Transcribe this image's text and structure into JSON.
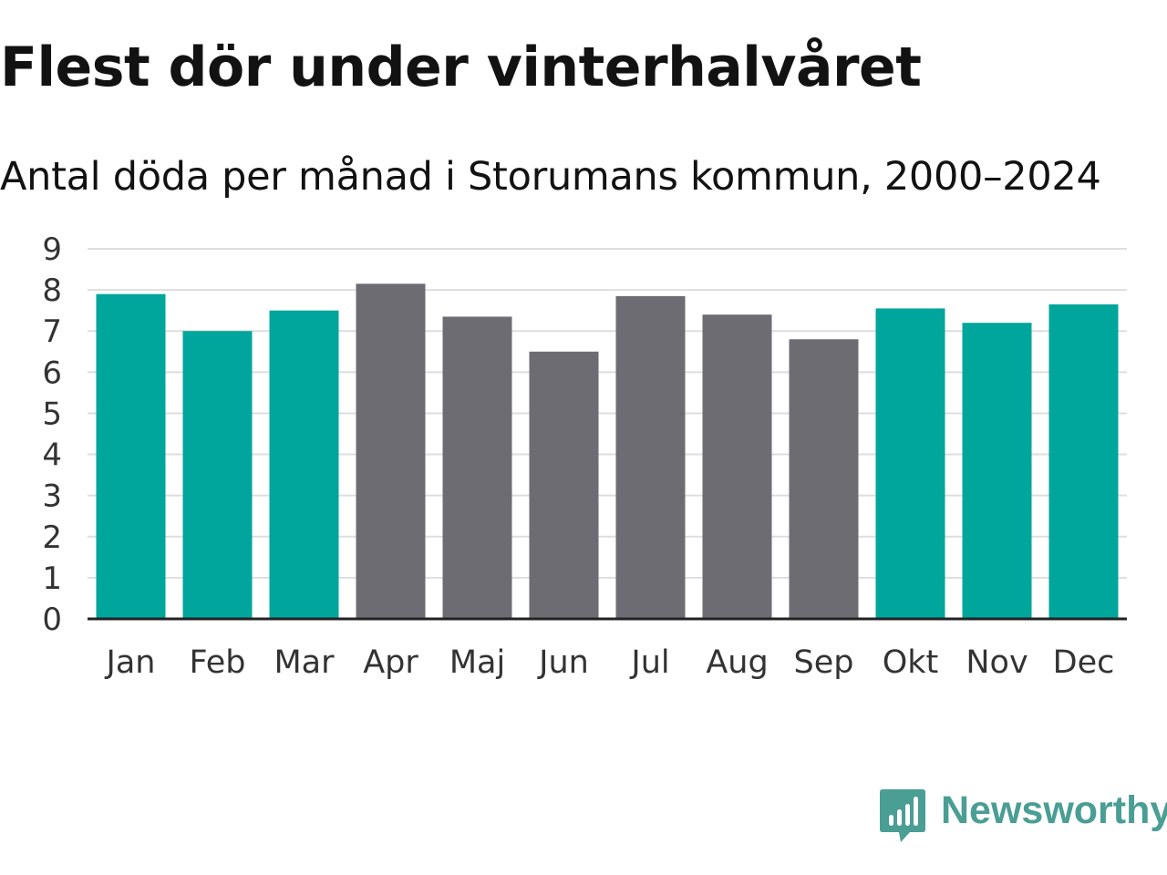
{
  "header": {
    "title": "Flest dör under vinterhalvåret",
    "subtitle": "Antal döda per månad i Storumans kommun, 2000–2024"
  },
  "colors": {
    "winter": "#00a59b",
    "summer": "#6d6c73",
    "grid": "#dedede",
    "axis": "#222222",
    "brand": "#4a9e94"
  },
  "chart_data": {
    "type": "bar",
    "title": "Flest dör under vinterhalvåret",
    "subtitle": "Antal döda per månad i Storumans kommun, 2000–2024",
    "xlabel": "",
    "ylabel": "",
    "ylim": [
      0,
      9
    ],
    "yticks": [
      0,
      1,
      2,
      3,
      4,
      5,
      6,
      7,
      8,
      9
    ],
    "grid": true,
    "categories": [
      "Jan",
      "Feb",
      "Mar",
      "Apr",
      "Maj",
      "Jun",
      "Jul",
      "Aug",
      "Sep",
      "Okt",
      "Nov",
      "Dec"
    ],
    "values": [
      7.9,
      7.0,
      7.5,
      8.15,
      7.35,
      6.5,
      7.85,
      7.4,
      6.8,
      7.55,
      7.2,
      7.65
    ],
    "season": [
      "winter",
      "winter",
      "winter",
      "summer",
      "summer",
      "summer",
      "summer",
      "summer",
      "summer",
      "winter",
      "winter",
      "winter"
    ]
  },
  "branding": {
    "name": "Newsworthy",
    "logo_icon": "newsworthy-logo-icon"
  }
}
